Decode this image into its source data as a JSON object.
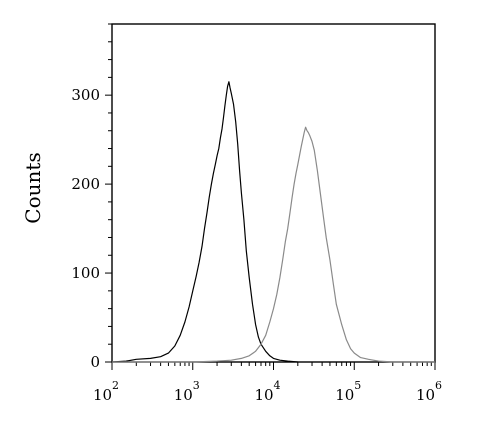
{
  "chart_data": {
    "type": "line",
    "title": "",
    "xlabel": "",
    "ylabel": "Counts",
    "x_scale": "log",
    "xlim": [
      100,
      1000000
    ],
    "ylim": [
      0,
      380
    ],
    "grid": false,
    "legend": "none",
    "x_ticks": [
      {
        "base": "10",
        "exp": "2"
      },
      {
        "base": "10",
        "exp": "3"
      },
      {
        "base": "10",
        "exp": "4"
      },
      {
        "base": "10",
        "exp": "5"
      },
      {
        "base": "10",
        "exp": "6"
      }
    ],
    "y_ticks": [
      "0",
      "100",
      "200",
      "300"
    ],
    "series": [
      {
        "color": "#000000",
        "points": [
          [
            100,
            0
          ],
          [
            150,
            1
          ],
          [
            200,
            3
          ],
          [
            300,
            4
          ],
          [
            400,
            6
          ],
          [
            500,
            10
          ],
          [
            600,
            18
          ],
          [
            700,
            30
          ],
          [
            800,
            45
          ],
          [
            900,
            62
          ],
          [
            1000,
            80
          ],
          [
            1100,
            96
          ],
          [
            1200,
            112
          ],
          [
            1300,
            130
          ],
          [
            1400,
            150
          ],
          [
            1500,
            168
          ],
          [
            1600,
            185
          ],
          [
            1700,
            200
          ],
          [
            1800,
            212
          ],
          [
            1900,
            222
          ],
          [
            2000,
            232
          ],
          [
            2100,
            240
          ],
          [
            2200,
            252
          ],
          [
            2300,
            262
          ],
          [
            2400,
            275
          ],
          [
            2500,
            288
          ],
          [
            2600,
            300
          ],
          [
            2700,
            310
          ],
          [
            2800,
            315
          ],
          [
            2900,
            308
          ],
          [
            3000,
            302
          ],
          [
            3200,
            290
          ],
          [
            3400,
            270
          ],
          [
            3600,
            245
          ],
          [
            3800,
            215
          ],
          [
            4000,
            190
          ],
          [
            4300,
            160
          ],
          [
            4600,
            125
          ],
          [
            5000,
            95
          ],
          [
            5500,
            65
          ],
          [
            6000,
            42
          ],
          [
            6500,
            28
          ],
          [
            7000,
            20
          ],
          [
            8000,
            12
          ],
          [
            9000,
            7
          ],
          [
            10000,
            4
          ],
          [
            12000,
            2
          ],
          [
            15000,
            1
          ],
          [
            20000,
            0
          ]
        ]
      },
      {
        "color": "#8a8a8a",
        "points": [
          [
            100,
            0
          ],
          [
            1000,
            0
          ],
          [
            2000,
            1
          ],
          [
            3000,
            2
          ],
          [
            4000,
            4
          ],
          [
            5000,
            7
          ],
          [
            6000,
            12
          ],
          [
            7000,
            20
          ],
          [
            8000,
            30
          ],
          [
            9000,
            45
          ],
          [
            10000,
            60
          ],
          [
            11000,
            76
          ],
          [
            12000,
            95
          ],
          [
            13000,
            115
          ],
          [
            14000,
            135
          ],
          [
            15000,
            150
          ],
          [
            16000,
            168
          ],
          [
            17000,
            185
          ],
          [
            18000,
            200
          ],
          [
            19000,
            212
          ],
          [
            20000,
            222
          ],
          [
            21000,
            232
          ],
          [
            22000,
            242
          ],
          [
            23000,
            250
          ],
          [
            24000,
            258
          ],
          [
            25000,
            264
          ],
          [
            26000,
            260
          ],
          [
            27000,
            258
          ],
          [
            28000,
            255
          ],
          [
            30000,
            248
          ],
          [
            32000,
            238
          ],
          [
            35000,
            215
          ],
          [
            38000,
            190
          ],
          [
            42000,
            160
          ],
          [
            45000,
            140
          ],
          [
            50000,
            115
          ],
          [
            55000,
            88
          ],
          [
            60000,
            65
          ],
          [
            70000,
            42
          ],
          [
            80000,
            25
          ],
          [
            90000,
            15
          ],
          [
            100000,
            10
          ],
          [
            120000,
            5
          ],
          [
            150000,
            3
          ],
          [
            200000,
            1
          ],
          [
            300000,
            0
          ],
          [
            1000000,
            0
          ]
        ]
      }
    ]
  }
}
